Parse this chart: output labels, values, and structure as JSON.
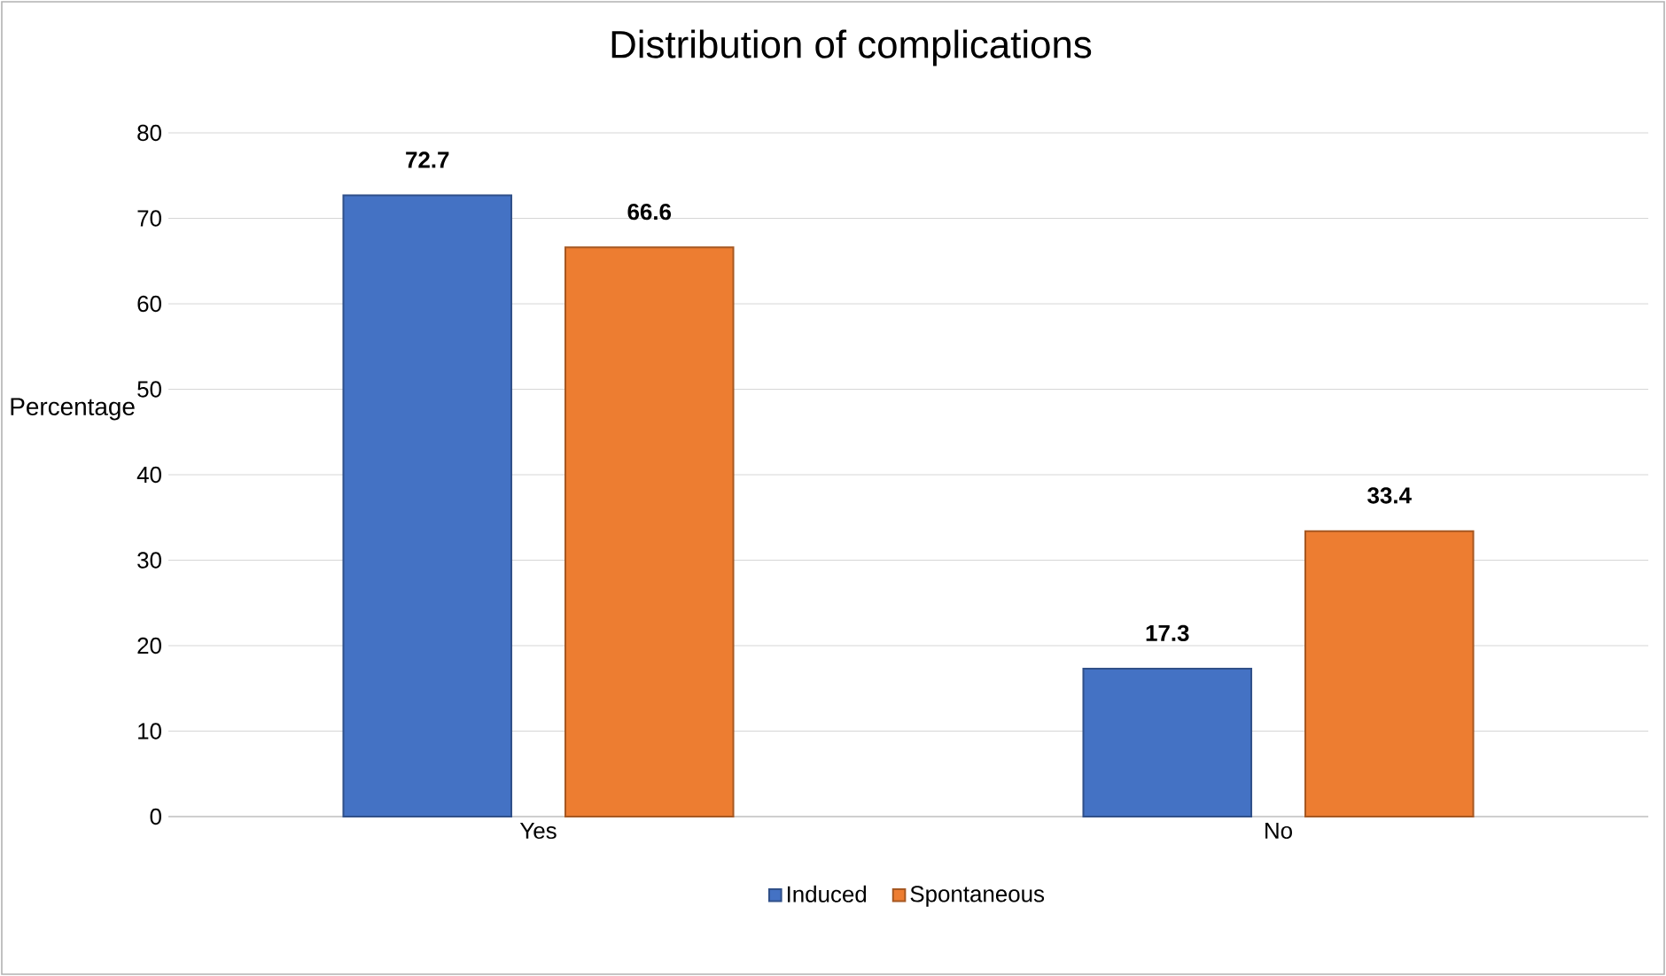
{
  "chart_data": {
    "type": "bar",
    "title": "Distribution of complications",
    "ylabel": "Percentage",
    "categories": [
      "Yes",
      "No"
    ],
    "series": [
      {
        "name": "Induced",
        "color": "#4472c4",
        "values": [
          72.7,
          17.3
        ]
      },
      {
        "name": "Spontaneous",
        "color": "#ed7d31",
        "values": [
          66.6,
          33.4
        ]
      }
    ],
    "ylim": [
      0,
      80
    ],
    "yticks": [
      0,
      10,
      20,
      30,
      40,
      50,
      60,
      70,
      80
    ],
    "grid": "y",
    "legend": "bottom",
    "data_labels": true
  }
}
